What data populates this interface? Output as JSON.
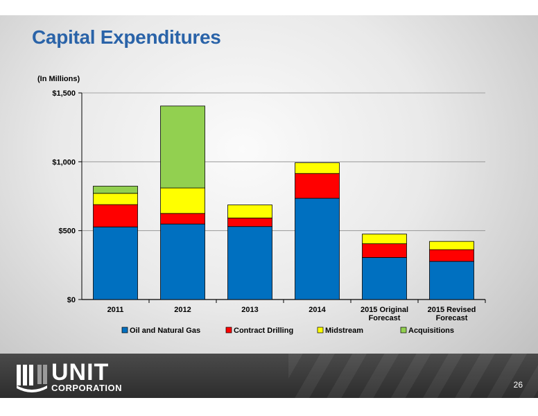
{
  "slide": {
    "title": "Capital Expenditures",
    "units_label": "(In Millions)",
    "page_number": "26",
    "logo": {
      "word": "UNIT",
      "sub": "CORPORATION"
    }
  },
  "chart_data": {
    "type": "bar",
    "stacked": true,
    "categories": [
      [
        "2011"
      ],
      [
        "2012"
      ],
      [
        "2013"
      ],
      [
        "2014"
      ],
      [
        "2015 Original",
        "Forecast"
      ],
      [
        "2015 Revised",
        "Forecast"
      ]
    ],
    "series": [
      {
        "name": "Oil and Natural Gas",
        "color": "#0070c0",
        "values": [
          527,
          548,
          530,
          735,
          305,
          277
        ]
      },
      {
        "name": "Contract Drilling",
        "color": "#ff0000",
        "values": [
          162,
          77,
          62,
          180,
          100,
          85
        ]
      },
      {
        "name": "Midstream",
        "color": "#ffff00",
        "values": [
          82,
          185,
          95,
          78,
          70,
          60
        ]
      },
      {
        "name": "Acquisitions",
        "color": "#92d050",
        "values": [
          52,
          595,
          0,
          0,
          0,
          0
        ]
      }
    ],
    "y_ticks": [
      "$0",
      "$500",
      "$1,000",
      "$1,500"
    ],
    "y_tick_values": [
      0,
      500,
      1000,
      1500
    ],
    "ylim": [
      0,
      1500
    ],
    "grid": true,
    "legend_position": "bottom"
  }
}
